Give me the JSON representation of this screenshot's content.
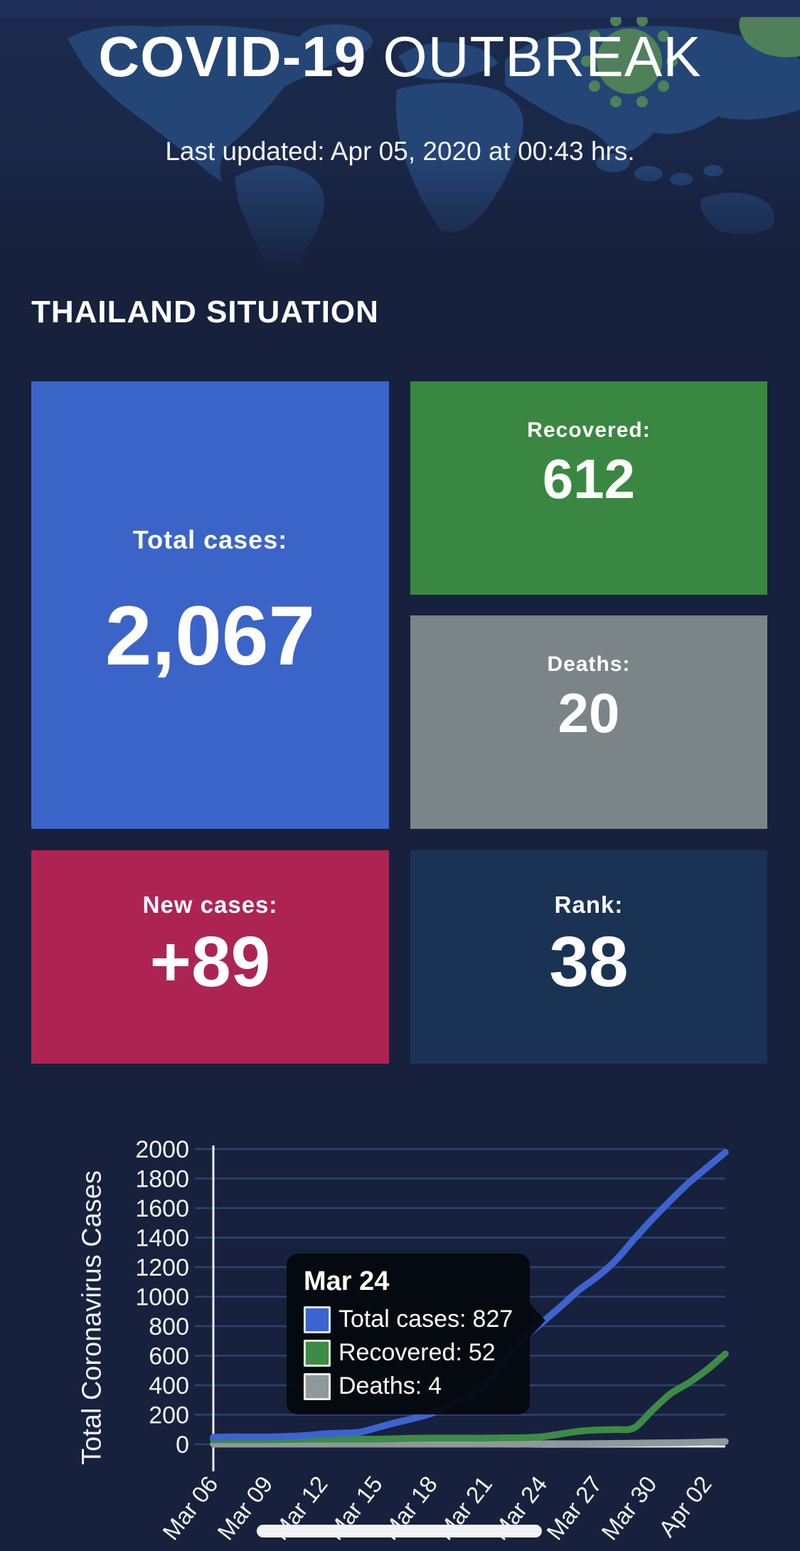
{
  "header": {
    "title_bold": "COVID-19",
    "title_regular": " OUTBREAK",
    "last_updated": "Last updated: Apr 05, 2020 at 00:43 hrs."
  },
  "section": {
    "title": "THAILAND SITUATION"
  },
  "cards": {
    "total": {
      "label": "Total cases:",
      "value": "2,067",
      "color": "#3b64c8"
    },
    "recovered": {
      "label": "Recovered:",
      "value": "612",
      "color": "#3a8741"
    },
    "deaths": {
      "label": "Deaths:",
      "value": "20",
      "color": "#7b8487"
    },
    "new_cases": {
      "label": "New cases:",
      "value": "+89",
      "color": "#ad2452"
    },
    "rank": {
      "label": "Rank:",
      "value": "38",
      "color": "#1a3355"
    }
  },
  "chart_data": {
    "type": "line",
    "title": "",
    "xlabel": "",
    "ylabel": "Total Coronavirus Cases",
    "ylim": [
      0,
      2000
    ],
    "yticks": [
      0,
      200,
      400,
      600,
      800,
      1000,
      1200,
      1400,
      1600,
      1800,
      2000
    ],
    "grid": true,
    "legend_position": "tooltip-only",
    "x_tick_step": 3,
    "x_tick_labels": [
      "Mar 06",
      "Mar 09",
      "Mar 12",
      "Mar 15",
      "Mar 18",
      "Mar 21",
      "Mar 24",
      "Mar 27",
      "Mar 30",
      "Apr 02"
    ],
    "dates": [
      "Mar 06",
      "Mar 07",
      "Mar 08",
      "Mar 09",
      "Mar 10",
      "Mar 11",
      "Mar 12",
      "Mar 13",
      "Mar 14",
      "Mar 15",
      "Mar 16",
      "Mar 17",
      "Mar 18",
      "Mar 19",
      "Mar 20",
      "Mar 21",
      "Mar 22",
      "Mar 23",
      "Mar 24",
      "Mar 25",
      "Mar 26",
      "Mar 27",
      "Mar 28",
      "Mar 29",
      "Mar 30",
      "Mar 31",
      "Apr 01",
      "Apr 02",
      "Apr 03"
    ],
    "series": [
      {
        "name": "Total cases",
        "color": "#3c63cf",
        "values": [
          48,
          50,
          50,
          50,
          53,
          59,
          70,
          75,
          82,
          114,
          147,
          177,
          212,
          272,
          322,
          411,
          599,
          721,
          827,
          934,
          1045,
          1136,
          1245,
          1388,
          1524,
          1651,
          1771,
          1875,
          1978
        ]
      },
      {
        "name": "Recovered",
        "color": "#3d8b44",
        "values": [
          31,
          31,
          31,
          31,
          33,
          34,
          34,
          35,
          35,
          35,
          38,
          41,
          42,
          42,
          42,
          42,
          44,
          45,
          52,
          70,
          88,
          97,
          100,
          111,
          229,
          342,
          416,
          505,
          612
        ]
      },
      {
        "name": "Deaths",
        "color": "#8f989a",
        "values": [
          1,
          1,
          1,
          1,
          1,
          1,
          1,
          1,
          1,
          1,
          1,
          1,
          1,
          1,
          1,
          1,
          1,
          1,
          4,
          4,
          4,
          5,
          6,
          7,
          9,
          10,
          12,
          15,
          19
        ]
      }
    ]
  },
  "tooltip": {
    "title": "Mar 24",
    "rows": [
      {
        "label": "Total cases:",
        "value": "827",
        "color": "#3c63cf"
      },
      {
        "label": "Recovered:",
        "value": "52",
        "color": "#3d8b44"
      },
      {
        "label": "Deaths:",
        "value": "4",
        "color": "#8f989a"
      }
    ]
  }
}
